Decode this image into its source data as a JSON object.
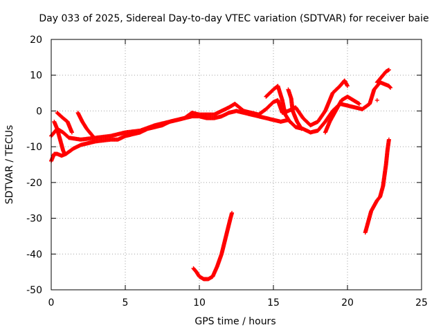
{
  "chart_data": {
    "type": "scatter",
    "title": "Day 033 of 2025, Sidereal Day-to-day VTEC variation (SDTVAR) for receiver baie",
    "xlabel": "GPS time / hours",
    "ylabel": "SDTVAR / TECUs",
    "xlim": [
      0,
      25
    ],
    "ylim": [
      -50,
      20
    ],
    "xticks": [
      0,
      5,
      10,
      15,
      20,
      25
    ],
    "yticks": [
      -50,
      -40,
      -30,
      -20,
      -10,
      0,
      10,
      20
    ],
    "grid": true,
    "marker": "+",
    "color": "#ff0000",
    "series": [
      {
        "name": "main-band",
        "points": [
          [
            0.0,
            -14
          ],
          [
            0.2,
            -12
          ],
          [
            0.4,
            -12
          ],
          [
            0.7,
            -12.5
          ],
          [
            1.0,
            -12
          ],
          [
            1.5,
            -10.5
          ],
          [
            2.0,
            -9.5
          ],
          [
            2.5,
            -9
          ],
          [
            3.0,
            -8.5
          ],
          [
            4.0,
            -8
          ],
          [
            4.5,
            -8
          ],
          [
            5.0,
            -7
          ],
          [
            5.5,
            -6.5
          ],
          [
            6.0,
            -6
          ],
          [
            6.5,
            -5
          ],
          [
            7.0,
            -4.5
          ],
          [
            7.5,
            -4
          ],
          [
            8.0,
            -3
          ],
          [
            8.5,
            -2.5
          ],
          [
            9.0,
            -2
          ],
          [
            9.5,
            -1.5
          ],
          [
            10.0,
            -1.5
          ],
          [
            10.5,
            -2
          ],
          [
            11.0,
            -2
          ],
          [
            11.5,
            -1.5
          ],
          [
            12.0,
            -0.5
          ],
          [
            12.5,
            0
          ],
          [
            13.0,
            -0.5
          ],
          [
            13.5,
            -1
          ],
          [
            14.0,
            -1.5
          ],
          [
            14.5,
            -2
          ],
          [
            15.0,
            -2.5
          ],
          [
            15.5,
            -3
          ],
          [
            16.0,
            -2.5
          ],
          [
            16.5,
            -4.5
          ],
          [
            17.0,
            -5
          ],
          [
            17.5,
            -6
          ],
          [
            18.0,
            -5.5
          ],
          [
            18.5,
            -3
          ],
          [
            19.0,
            0
          ],
          [
            19.5,
            2
          ],
          [
            20.0,
            1.5
          ],
          [
            20.5,
            1
          ],
          [
            21.0,
            0.5
          ],
          [
            21.5,
            2
          ],
          [
            21.8,
            6
          ],
          [
            22.2,
            8
          ],
          [
            22.8,
            7
          ],
          [
            22.9,
            6.5
          ]
        ]
      },
      {
        "name": "upper-band",
        "points": [
          [
            0.0,
            -7
          ],
          [
            0.4,
            -5
          ],
          [
            0.8,
            -6
          ],
          [
            1.2,
            -7.5
          ],
          [
            2.0,
            -8
          ],
          [
            3.0,
            -7.5
          ],
          [
            4.0,
            -7
          ],
          [
            5.0,
            -6
          ],
          [
            6.0,
            -5.5
          ],
          [
            7.0,
            -4
          ],
          [
            8.0,
            -3
          ],
          [
            9.0,
            -2
          ],
          [
            9.5,
            -0.5
          ],
          [
            10.0,
            -1
          ],
          [
            11.0,
            -1
          ],
          [
            11.5,
            0
          ],
          [
            12.0,
            1
          ],
          [
            12.4,
            2
          ],
          [
            13.0,
            0
          ],
          [
            13.5,
            -0.5
          ],
          [
            14.0,
            -1
          ],
          [
            14.5,
            0.5
          ],
          [
            15.0,
            2.5
          ],
          [
            15.3,
            3
          ],
          [
            15.6,
            -0.5
          ],
          [
            16.0,
            0
          ],
          [
            16.5,
            1
          ],
          [
            17.0,
            -2
          ],
          [
            17.5,
            -4
          ],
          [
            18.0,
            -3
          ],
          [
            18.5,
            0
          ],
          [
            19.0,
            5
          ],
          [
            19.5,
            7
          ],
          [
            19.8,
            8.5
          ],
          [
            20.0,
            7
          ]
        ]
      },
      {
        "name": "branch-a",
        "points": [
          [
            0.2,
            -3
          ],
          [
            0.4,
            -5
          ],
          [
            0.6,
            -8
          ],
          [
            0.8,
            -11
          ],
          [
            0.9,
            -12
          ]
        ]
      },
      {
        "name": "branch-b",
        "points": [
          [
            0.4,
            -0.5
          ],
          [
            0.8,
            -2
          ],
          [
            1.1,
            -3
          ],
          [
            1.3,
            -5
          ],
          [
            1.4,
            -6
          ]
        ]
      },
      {
        "name": "branch-c",
        "points": [
          [
            1.8,
            -0.5
          ],
          [
            2.1,
            -3
          ],
          [
            2.4,
            -5
          ],
          [
            2.8,
            -7
          ]
        ]
      },
      {
        "name": "branch-d",
        "points": [
          [
            14.5,
            4
          ],
          [
            15.0,
            6
          ],
          [
            15.3,
            7
          ],
          [
            15.6,
            3
          ],
          [
            15.8,
            -1
          ],
          [
            16.1,
            -3
          ]
        ]
      },
      {
        "name": "branch-e",
        "points": [
          [
            16.0,
            6
          ],
          [
            16.2,
            3.5
          ],
          [
            16.3,
            0
          ],
          [
            16.6,
            -3
          ],
          [
            16.9,
            -5
          ]
        ]
      },
      {
        "name": "branch-f",
        "points": [
          [
            18.5,
            -6
          ],
          [
            18.8,
            -3
          ],
          [
            19.2,
            0
          ],
          [
            19.6,
            3
          ],
          [
            20.0,
            4
          ],
          [
            20.4,
            3
          ],
          [
            20.8,
            2
          ]
        ]
      },
      {
        "name": "branch-g",
        "points": [
          [
            22.0,
            8
          ],
          [
            22.3,
            9.5
          ],
          [
            22.6,
            11
          ],
          [
            22.8,
            11.5
          ]
        ]
      },
      {
        "name": "outlier",
        "points": [
          [
            22.0,
            3
          ]
        ]
      },
      {
        "name": "dip-mid",
        "points": [
          [
            9.6,
            -44
          ],
          [
            9.8,
            -45
          ],
          [
            10.0,
            -46.3
          ],
          [
            10.3,
            -47
          ],
          [
            10.6,
            -47
          ],
          [
            10.9,
            -46.3
          ],
          [
            11.2,
            -43.5
          ],
          [
            11.5,
            -40
          ],
          [
            11.8,
            -35
          ],
          [
            12.1,
            -30
          ],
          [
            12.2,
            -28.5
          ]
        ]
      },
      {
        "name": "rise-end",
        "points": [
          [
            21.2,
            -34
          ],
          [
            21.4,
            -31
          ],
          [
            21.6,
            -28
          ],
          [
            21.8,
            -26.5
          ],
          [
            22.0,
            -25
          ],
          [
            22.2,
            -24
          ],
          [
            22.4,
            -21
          ],
          [
            22.5,
            -18
          ],
          [
            22.6,
            -15
          ],
          [
            22.7,
            -11
          ],
          [
            22.8,
            -8
          ]
        ]
      }
    ]
  }
}
